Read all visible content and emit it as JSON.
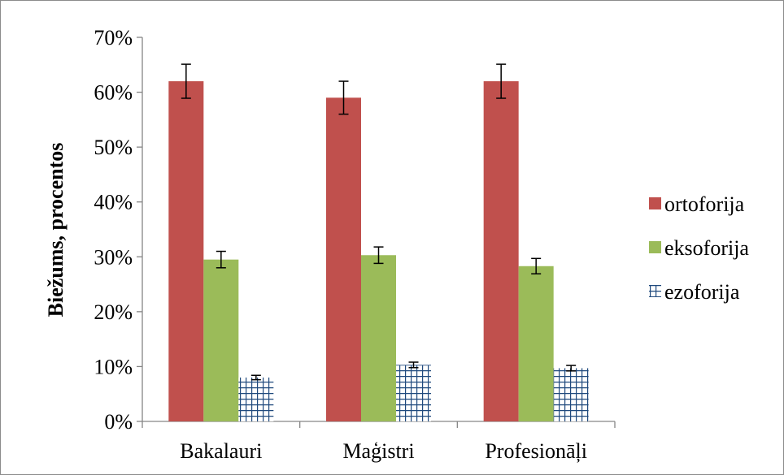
{
  "chart_data": {
    "type": "bar",
    "categories": [
      "Bakalauri",
      "Maģistri",
      "Profesionāļi"
    ],
    "series": [
      {
        "name": "ortoforija",
        "values": [
          0.62,
          0.59,
          0.62
        ],
        "errors": [
          0.031,
          0.03,
          0.031
        ],
        "color": "#c0504d",
        "pattern": "solid"
      },
      {
        "name": "eksoforija",
        "values": [
          0.295,
          0.303,
          0.283
        ],
        "errors": [
          0.015,
          0.015,
          0.014
        ],
        "color": "#9bbb59",
        "pattern": "solid"
      },
      {
        "name": "ezoforija",
        "values": [
          0.08,
          0.103,
          0.097
        ],
        "errors": [
          0.004,
          0.005,
          0.005
        ],
        "color": "#1f497d",
        "pattern": "grid"
      }
    ],
    "title": "",
    "xlabel": "",
    "ylabel": "Biežums, procentos",
    "ylim": [
      0,
      0.7
    ],
    "yticks": [
      "0%",
      "10%",
      "20%",
      "30%",
      "40%",
      "50%",
      "60%",
      "70%"
    ],
    "grid": false,
    "legend_position": "right",
    "error_bars": true
  }
}
